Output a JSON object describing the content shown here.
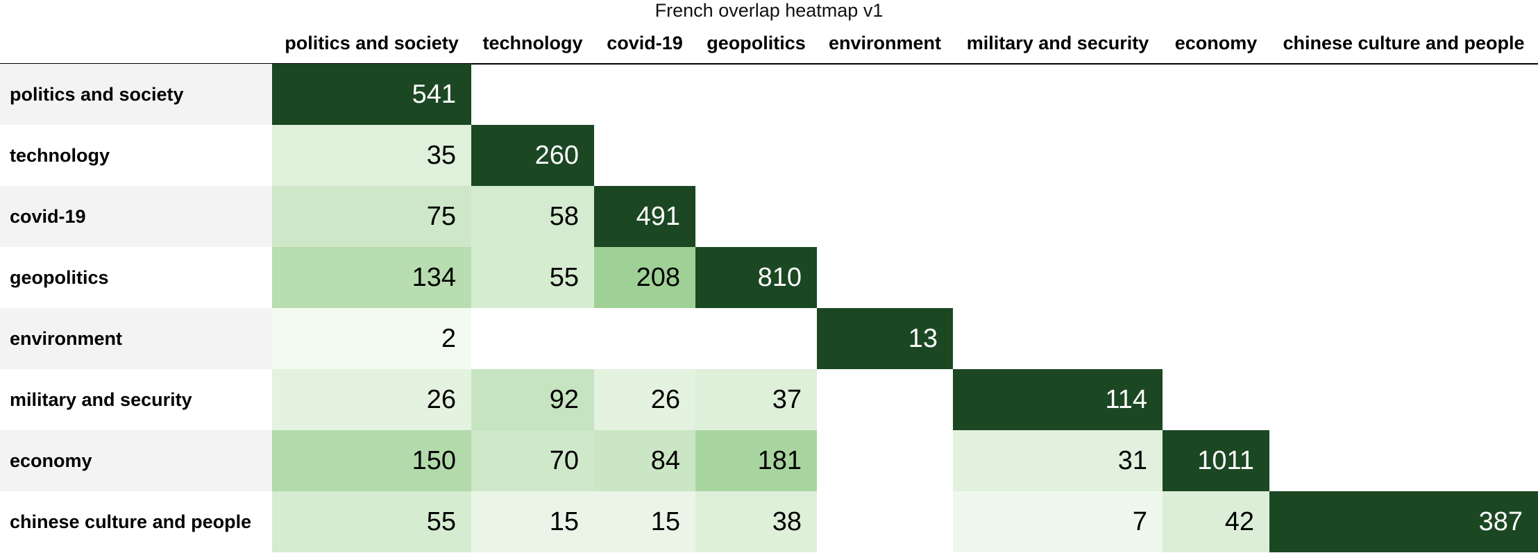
{
  "chart_data": {
    "type": "heatmap",
    "title": "French overlap heatmap v1",
    "xlabel": "",
    "ylabel": "",
    "x_categories": [
      "politics and society",
      "technology",
      "covid-19",
      "geopolitics",
      "environment",
      "military and security",
      "economy",
      "chinese culture and people"
    ],
    "y_categories": [
      "politics and society",
      "technology",
      "covid-19",
      "geopolitics",
      "environment",
      "military and security",
      "economy",
      "chinese culture and people"
    ],
    "values": [
      [
        541,
        null,
        null,
        null,
        null,
        null,
        null,
        null
      ],
      [
        35,
        260,
        null,
        null,
        null,
        null,
        null,
        null
      ],
      [
        75,
        58,
        491,
        null,
        null,
        null,
        null,
        null
      ],
      [
        134,
        55,
        208,
        810,
        null,
        null,
        null,
        null
      ],
      [
        2,
        null,
        null,
        null,
        13,
        null,
        null,
        null
      ],
      [
        26,
        92,
        26,
        37,
        null,
        114,
        null,
        null
      ],
      [
        150,
        70,
        84,
        181,
        null,
        31,
        1011,
        null
      ],
      [
        55,
        15,
        15,
        38,
        null,
        7,
        42,
        387
      ]
    ],
    "colors": {
      "diagonal": "#1c4723",
      "scale_low": "#f6fbf4",
      "scale_high": "#9fd196",
      "row_band": "#f3f3f3",
      "light_text": "#ffffff",
      "dark_text": "#000000"
    },
    "grid": false,
    "legend": "none"
  }
}
